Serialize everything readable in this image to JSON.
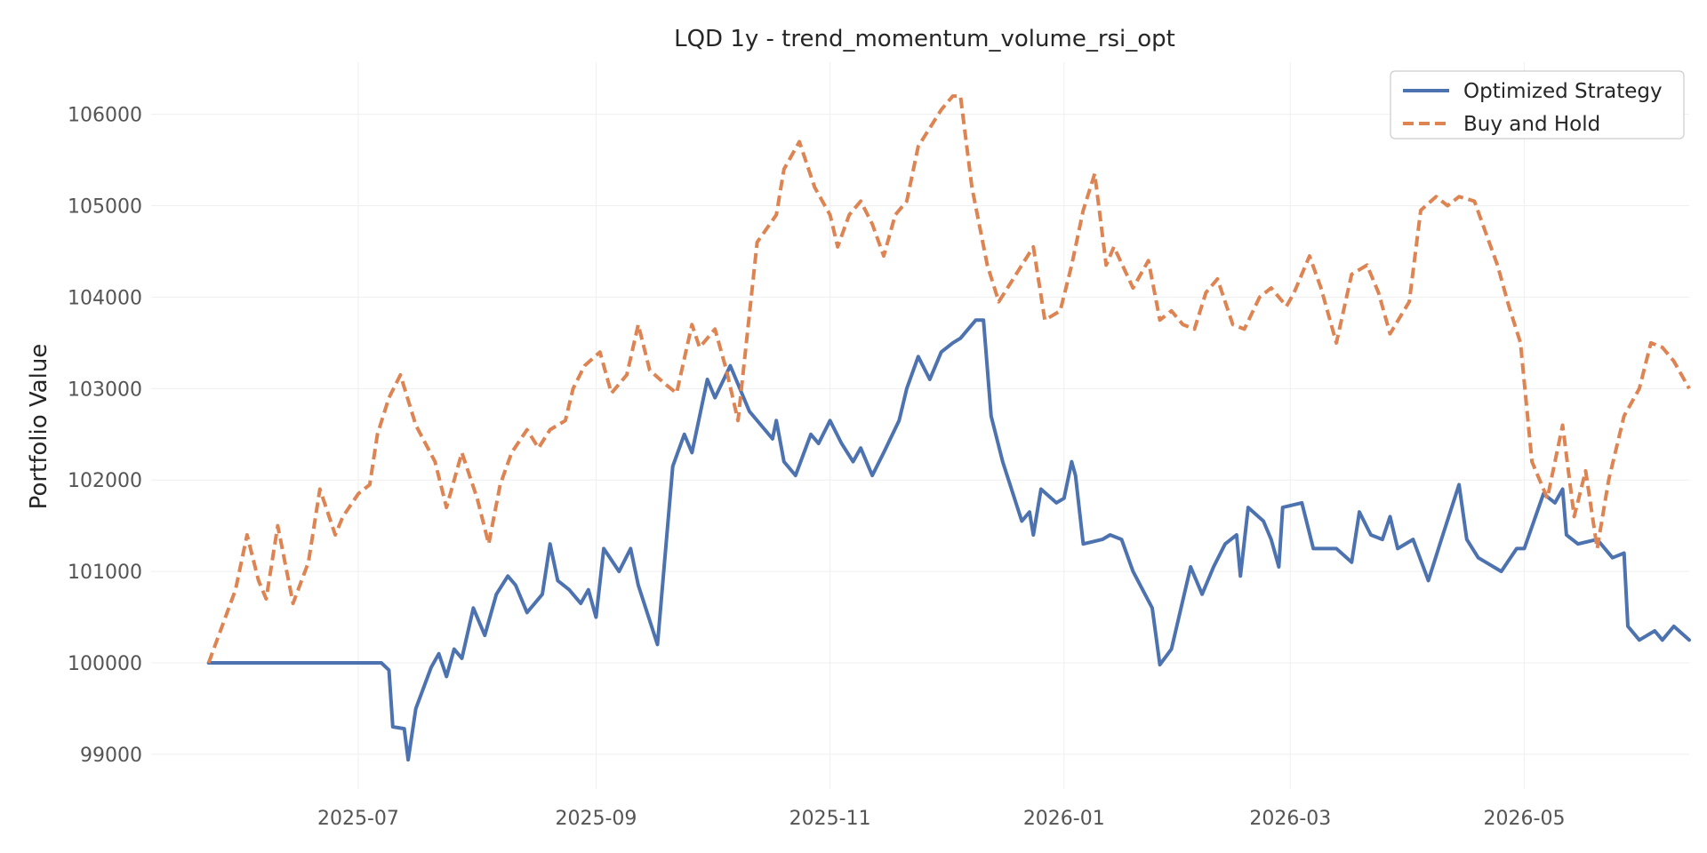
{
  "chart_data": {
    "type": "line",
    "title": "LQD 1y - trend_momentum_volume_rsi_opt",
    "xlabel": "",
    "ylabel": "Portfolio Value",
    "xlim": [
      "2025-05-08",
      "2026-06-13"
    ],
    "ylim": [
      98620,
      106570
    ],
    "grid": true,
    "legend_position": "top-right",
    "x_ticks": [
      "2025-07",
      "2025-09",
      "2025-11",
      "2026-01",
      "2026-03",
      "2026-05"
    ],
    "y_ticks": [
      99000,
      100000,
      101000,
      102000,
      103000,
      104000,
      105000,
      106000
    ],
    "y_tick_labels": [
      "99000",
      "100000",
      "101000",
      "102000",
      "103000",
      "104000",
      "105000",
      "106000"
    ],
    "series": [
      {
        "name": "Optimized Strategy",
        "color": "#4c72b0",
        "style": "solid",
        "points": [
          [
            "2025-05-23",
            100000
          ],
          [
            "2025-06-09",
            100000
          ],
          [
            "2025-06-27",
            100000
          ],
          [
            "2025-07-07",
            100000
          ],
          [
            "2025-07-09",
            99920
          ],
          [
            "2025-07-10",
            99300
          ],
          [
            "2025-07-13",
            99280
          ],
          [
            "2025-07-14",
            98940
          ],
          [
            "2025-07-16",
            99500
          ],
          [
            "2025-07-20",
            99950
          ],
          [
            "2025-07-22",
            100100
          ],
          [
            "2025-07-24",
            99850
          ],
          [
            "2025-07-26",
            100150
          ],
          [
            "2025-07-28",
            100050
          ],
          [
            "2025-07-31",
            100600
          ],
          [
            "2025-08-03",
            100300
          ],
          [
            "2025-08-06",
            100750
          ],
          [
            "2025-08-09",
            100950
          ],
          [
            "2025-08-11",
            100850
          ],
          [
            "2025-08-14",
            100550
          ],
          [
            "2025-08-18",
            100750
          ],
          [
            "2025-08-20",
            101300
          ],
          [
            "2025-08-22",
            100900
          ],
          [
            "2025-08-25",
            100800
          ],
          [
            "2025-08-28",
            100650
          ],
          [
            "2025-08-30",
            100800
          ],
          [
            "2025-09-01",
            100500
          ],
          [
            "2025-09-03",
            101250
          ],
          [
            "2025-09-07",
            101000
          ],
          [
            "2025-09-10",
            101250
          ],
          [
            "2025-09-12",
            100850
          ],
          [
            "2025-09-17",
            100200
          ],
          [
            "2025-09-21",
            102150
          ],
          [
            "2025-09-24",
            102500
          ],
          [
            "2025-09-26",
            102300
          ],
          [
            "2025-09-30",
            103100
          ],
          [
            "2025-10-02",
            102900
          ],
          [
            "2025-10-06",
            103250
          ],
          [
            "2025-10-11",
            102750
          ],
          [
            "2025-10-14",
            102600
          ],
          [
            "2025-10-17",
            102450
          ],
          [
            "2025-10-18",
            102650
          ],
          [
            "2025-10-20",
            102200
          ],
          [
            "2025-10-23",
            102050
          ],
          [
            "2025-10-27",
            102500
          ],
          [
            "2025-10-29",
            102400
          ],
          [
            "2025-11-01",
            102650
          ],
          [
            "2025-11-04",
            102400
          ],
          [
            "2025-11-07",
            102200
          ],
          [
            "2025-11-09",
            102350
          ],
          [
            "2025-11-12",
            102050
          ],
          [
            "2025-11-15",
            102300
          ],
          [
            "2025-11-19",
            102650
          ],
          [
            "2025-11-21",
            103000
          ],
          [
            "2025-11-24",
            103350
          ],
          [
            "2025-11-27",
            103100
          ],
          [
            "2025-11-30",
            103400
          ],
          [
            "2025-12-03",
            103500
          ],
          [
            "2025-12-05",
            103550
          ],
          [
            "2025-12-09",
            103750
          ],
          [
            "2025-12-11",
            103750
          ],
          [
            "2025-12-13",
            102700
          ],
          [
            "2025-12-16",
            102200
          ],
          [
            "2025-12-21",
            101550
          ],
          [
            "2025-12-23",
            101650
          ],
          [
            "2025-12-24",
            101400
          ],
          [
            "2025-12-26",
            101900
          ],
          [
            "2025-12-30",
            101750
          ],
          [
            "2026-01-01",
            101800
          ],
          [
            "2026-01-03",
            102200
          ],
          [
            "2026-01-04",
            102050
          ],
          [
            "2026-01-06",
            101300
          ],
          [
            "2026-01-11",
            101350
          ],
          [
            "2026-01-13",
            101400
          ],
          [
            "2026-01-16",
            101350
          ],
          [
            "2026-01-19",
            101000
          ],
          [
            "2026-01-24",
            100600
          ],
          [
            "2026-01-26",
            99980
          ],
          [
            "2026-01-29",
            100150
          ],
          [
            "2026-02-03",
            101050
          ],
          [
            "2026-02-06",
            100750
          ],
          [
            "2026-02-09",
            101050
          ],
          [
            "2026-02-12",
            101300
          ],
          [
            "2026-02-15",
            101400
          ],
          [
            "2026-02-16",
            100950
          ],
          [
            "2026-02-18",
            101700
          ],
          [
            "2026-02-22",
            101550
          ],
          [
            "2026-02-24",
            101350
          ],
          [
            "2026-02-26",
            101050
          ],
          [
            "2026-02-27",
            101700
          ],
          [
            "2026-03-04",
            101750
          ],
          [
            "2026-03-07",
            101250
          ],
          [
            "2026-03-13",
            101250
          ],
          [
            "2026-03-17",
            101100
          ],
          [
            "2026-03-19",
            101650
          ],
          [
            "2026-03-22",
            101400
          ],
          [
            "2026-03-25",
            101350
          ],
          [
            "2026-03-27",
            101600
          ],
          [
            "2026-03-29",
            101250
          ],
          [
            "2026-04-02",
            101350
          ],
          [
            "2026-04-06",
            100900
          ],
          [
            "2026-04-09",
            101300
          ],
          [
            "2026-04-14",
            101950
          ],
          [
            "2026-04-16",
            101350
          ],
          [
            "2026-04-19",
            101150
          ],
          [
            "2026-04-23",
            101050
          ],
          [
            "2026-04-25",
            101000
          ],
          [
            "2026-04-29",
            101250
          ],
          [
            "2026-05-01",
            101250
          ],
          [
            "2026-05-06",
            101850
          ],
          [
            "2026-05-09",
            101750
          ],
          [
            "2026-05-11",
            101900
          ],
          [
            "2026-05-12",
            101400
          ],
          [
            "2026-05-15",
            101300
          ],
          [
            "2026-05-20",
            101350
          ],
          [
            "2026-05-24",
            101150
          ],
          [
            "2026-05-27",
            101200
          ],
          [
            "2026-05-28",
            100400
          ],
          [
            "2026-05-31",
            100250
          ],
          [
            "2026-06-04",
            100350
          ],
          [
            "2026-06-06",
            100250
          ],
          [
            "2026-06-09",
            100400
          ],
          [
            "2026-06-13",
            100250
          ]
        ]
      },
      {
        "name": "Buy and Hold",
        "color": "#dd8452",
        "style": "dashed",
        "points": [
          [
            "2025-05-23",
            100000
          ],
          [
            "2025-05-30",
            100800
          ],
          [
            "2025-06-02",
            101400
          ],
          [
            "2025-06-05",
            100900
          ],
          [
            "2025-06-07",
            100700
          ],
          [
            "2025-06-10",
            101500
          ],
          [
            "2025-06-14",
            100650
          ],
          [
            "2025-06-18",
            101100
          ],
          [
            "2025-06-21",
            101900
          ],
          [
            "2025-06-25",
            101400
          ],
          [
            "2025-06-27",
            101600
          ],
          [
            "2025-07-01",
            101850
          ],
          [
            "2025-07-04",
            101950
          ],
          [
            "2025-07-06",
            102500
          ],
          [
            "2025-07-09",
            102900
          ],
          [
            "2025-07-12",
            103150
          ],
          [
            "2025-07-16",
            102600
          ],
          [
            "2025-07-21",
            102200
          ],
          [
            "2025-07-24",
            101700
          ],
          [
            "2025-07-28",
            102300
          ],
          [
            "2025-08-01",
            101800
          ],
          [
            "2025-08-04",
            101300
          ],
          [
            "2025-08-07",
            101950
          ],
          [
            "2025-08-10",
            102300
          ],
          [
            "2025-08-14",
            102550
          ],
          [
            "2025-08-17",
            102350
          ],
          [
            "2025-08-20",
            102550
          ],
          [
            "2025-08-24",
            102650
          ],
          [
            "2025-08-26",
            103000
          ],
          [
            "2025-08-29",
            103250
          ],
          [
            "2025-09-02",
            103400
          ],
          [
            "2025-09-05",
            102950
          ],
          [
            "2025-09-09",
            103150
          ],
          [
            "2025-09-12",
            103700
          ],
          [
            "2025-09-15",
            103200
          ],
          [
            "2025-09-19",
            103050
          ],
          [
            "2025-09-22",
            102950
          ],
          [
            "2025-09-26",
            103700
          ],
          [
            "2025-09-28",
            103450
          ],
          [
            "2025-10-02",
            103650
          ],
          [
            "2025-10-05",
            103200
          ],
          [
            "2025-10-08",
            102650
          ],
          [
            "2025-10-13",
            104600
          ],
          [
            "2025-10-18",
            104900
          ],
          [
            "2025-10-20",
            105400
          ],
          [
            "2025-10-24",
            105700
          ],
          [
            "2025-10-28",
            105200
          ],
          [
            "2025-11-01",
            104900
          ],
          [
            "2025-11-03",
            104550
          ],
          [
            "2025-11-06",
            104900
          ],
          [
            "2025-11-09",
            105050
          ],
          [
            "2025-11-12",
            104800
          ],
          [
            "2025-11-15",
            104450
          ],
          [
            "2025-11-18",
            104900
          ],
          [
            "2025-11-21",
            105050
          ],
          [
            "2025-11-24",
            105650
          ],
          [
            "2025-11-27",
            105850
          ],
          [
            "2025-11-30",
            106050
          ],
          [
            "2025-12-03",
            106200
          ],
          [
            "2025-12-05",
            106200
          ],
          [
            "2025-12-08",
            105200
          ],
          [
            "2025-12-12",
            104350
          ],
          [
            "2025-12-15",
            103950
          ],
          [
            "2025-12-18",
            104150
          ],
          [
            "2025-12-21",
            104350
          ],
          [
            "2025-12-24",
            104550
          ],
          [
            "2025-12-27",
            103750
          ],
          [
            "2025-12-31",
            103850
          ],
          [
            "2026-01-03",
            104350
          ],
          [
            "2026-01-06",
            104950
          ],
          [
            "2026-01-09",
            105350
          ],
          [
            "2026-01-12",
            104350
          ],
          [
            "2026-01-14",
            104550
          ],
          [
            "2026-01-19",
            104100
          ],
          [
            "2026-01-23",
            104400
          ],
          [
            "2026-01-26",
            103750
          ],
          [
            "2026-01-29",
            103850
          ],
          [
            "2026-02-01",
            103700
          ],
          [
            "2026-02-04",
            103650
          ],
          [
            "2026-02-07",
            104050
          ],
          [
            "2026-02-10",
            104200
          ],
          [
            "2026-02-14",
            103700
          ],
          [
            "2026-02-17",
            103650
          ],
          [
            "2026-02-21",
            104000
          ],
          [
            "2026-02-24",
            104100
          ],
          [
            "2026-02-28",
            103900
          ],
          [
            "2026-03-02",
            104050
          ],
          [
            "2026-03-06",
            104450
          ],
          [
            "2026-03-09",
            104100
          ],
          [
            "2026-03-13",
            103500
          ],
          [
            "2026-03-17",
            104250
          ],
          [
            "2026-03-21",
            104350
          ],
          [
            "2026-03-24",
            104050
          ],
          [
            "2026-03-27",
            103600
          ],
          [
            "2026-04-01",
            103950
          ],
          [
            "2026-04-04",
            104950
          ],
          [
            "2026-04-08",
            105100
          ],
          [
            "2026-04-11",
            105000
          ],
          [
            "2026-04-14",
            105100
          ],
          [
            "2026-04-18",
            105050
          ],
          [
            "2026-04-21",
            104700
          ],
          [
            "2026-04-24",
            104350
          ],
          [
            "2026-04-27",
            103900
          ],
          [
            "2026-04-30",
            103500
          ],
          [
            "2026-05-03",
            102200
          ],
          [
            "2026-05-07",
            101800
          ],
          [
            "2026-05-11",
            102600
          ],
          [
            "2026-05-14",
            101600
          ],
          [
            "2026-05-17",
            102100
          ],
          [
            "2026-05-20",
            101250
          ],
          [
            "2026-05-23",
            102000
          ],
          [
            "2026-05-27",
            102700
          ],
          [
            "2026-05-31",
            103000
          ],
          [
            "2026-06-03",
            103500
          ],
          [
            "2026-06-06",
            103450
          ],
          [
            "2026-06-09",
            103300
          ],
          [
            "2026-06-13",
            103000
          ]
        ]
      }
    ]
  }
}
